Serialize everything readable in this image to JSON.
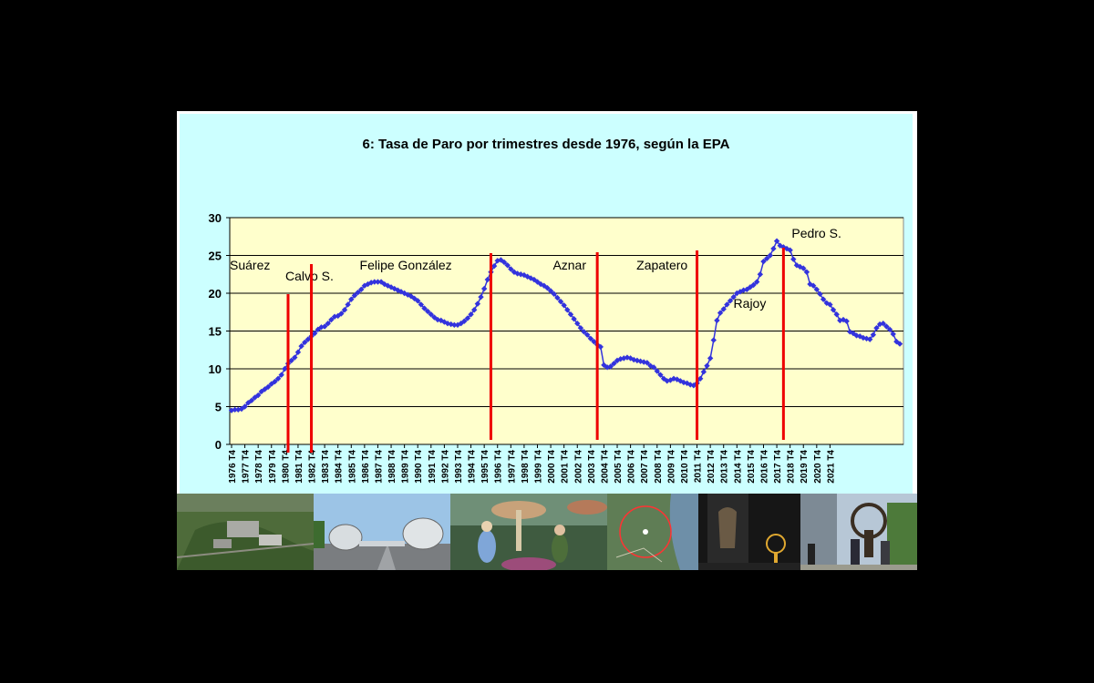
{
  "chart_data": {
    "type": "line",
    "title": "6: Tasa de Paro por trimestres  desde 1976, según la EPA",
    "xlabel": "",
    "ylabel": "",
    "ylim": [
      0,
      30
    ],
    "yticks": [
      0,
      5,
      10,
      15,
      20,
      25,
      30
    ],
    "x_tick_labels": [
      "1976 T4",
      "1977 T4",
      "1978 T4",
      "1979 T4",
      "1980 T4",
      "1981 T4",
      "1982 T4",
      "1983 T4",
      "1984 T4",
      "1985 T4",
      "1986 T4",
      "1987 T4",
      "1988 T4",
      "1989 T4",
      "1990 T4",
      "1991 T4",
      "1992 T4",
      "1993 T4",
      "1994 T4",
      "1995 T4",
      "1996 T4",
      "1997 T4",
      "1998 T4",
      "1999 T4",
      "2000 T4",
      "2001 T4",
      "2002 T4",
      "2003 T4",
      "2004 T4",
      "2005 T4",
      "2006 T4",
      "2007 T4",
      "2008 T4",
      "2009 T4",
      "2010 T4",
      "2011 T4",
      "2012 T4",
      "2013 T4",
      "2014 T4",
      "2015 T4",
      "2016 T4",
      "2017 T4",
      "2018 T4",
      "2019 T4",
      "2020 T4",
      "2021 T4"
    ],
    "grid": true,
    "legend": "none",
    "colors": {
      "plot_bg": "#ffffcc",
      "chart_bg": "#ccffff",
      "series": "#3333dd",
      "marker_line": "#ee0000",
      "grid": "#000000"
    },
    "series": [
      {
        "name": "",
        "x_start": "1976 T4",
        "x_step": "quarter",
        "values": [
          4.5,
          4.6,
          4.6,
          4.7,
          5.0,
          5.5,
          5.8,
          6.2,
          6.5,
          7.0,
          7.3,
          7.6,
          8.0,
          8.3,
          8.7,
          9.2,
          10.0,
          10.7,
          11.1,
          11.5,
          12.2,
          13.0,
          13.5,
          13.9,
          14.3,
          14.7,
          15.2,
          15.5,
          15.6,
          16.0,
          16.5,
          16.9,
          17.0,
          17.3,
          17.8,
          18.5,
          19.2,
          19.7,
          20.1,
          20.5,
          21.0,
          21.2,
          21.4,
          21.5,
          21.5,
          21.5,
          21.2,
          21.0,
          20.8,
          20.6,
          20.4,
          20.2,
          20.0,
          19.8,
          19.6,
          19.3,
          19.0,
          18.5,
          18.0,
          17.6,
          17.2,
          16.8,
          16.5,
          16.4,
          16.2,
          16.0,
          15.9,
          15.8,
          15.8,
          16.0,
          16.3,
          16.7,
          17.2,
          17.8,
          18.6,
          19.5,
          20.6,
          21.8,
          22.8,
          23.6,
          24.3,
          24.4,
          24.1,
          23.7,
          23.2,
          22.8,
          22.6,
          22.5,
          22.4,
          22.2,
          22.0,
          21.8,
          21.5,
          21.2,
          21.0,
          20.7,
          20.3,
          19.9,
          19.4,
          18.9,
          18.4,
          17.8,
          17.2,
          16.6,
          16.0,
          15.4,
          14.9,
          14.5,
          14.0,
          13.6,
          13.2,
          12.9,
          10.5,
          10.2,
          10.3,
          10.7,
          11.1,
          11.3,
          11.4,
          11.5,
          11.4,
          11.2,
          11.1,
          11.0,
          10.9,
          10.8,
          10.4,
          10.2,
          9.7,
          9.2,
          8.7,
          8.4,
          8.5,
          8.7,
          8.6,
          8.4,
          8.2,
          8.1,
          7.9,
          7.8,
          8.1,
          8.7,
          9.6,
          10.4,
          11.4,
          13.8,
          16.4,
          17.4,
          17.9,
          18.5,
          19.0,
          19.5,
          20.0,
          20.2,
          20.4,
          20.5,
          20.8,
          21.1,
          21.5,
          22.5,
          24.2,
          24.6,
          25.0,
          25.9,
          26.9,
          26.3,
          26.1,
          25.9,
          25.7,
          24.5,
          23.7,
          23.5,
          23.3,
          22.8,
          21.2,
          21.0,
          20.5,
          19.9,
          19.2,
          18.7,
          18.5,
          17.8,
          17.2,
          16.4,
          16.5,
          16.3,
          14.9,
          14.7,
          14.4,
          14.3,
          14.1,
          14.0,
          13.9,
          14.5,
          15.4,
          15.9,
          16.0,
          15.6,
          15.2,
          14.6,
          13.6,
          13.3
        ]
      }
    ],
    "vertical_markers": [
      {
        "label": "Suárez",
        "x": "1976 T4"
      },
      {
        "label": "Calvo S.",
        "x": "1981 T1"
      },
      {
        "label": "Felipe González",
        "x": "1982 T4"
      },
      {
        "label": "Aznar",
        "x": "1996 T2"
      },
      {
        "label": "Zapatero",
        "x": "2004 T2"
      },
      {
        "label": "Rajoy",
        "x": "2011 T4"
      },
      {
        "label": "Pedro S.",
        "x": "2018 T2"
      }
    ]
  },
  "images": {
    "photo_1": "aerial view of campus",
    "photo_2": "futuristic buildings on road",
    "photo_3": "fantasy movie scene with giant mushrooms",
    "photo_4": "satellite map with circle",
    "photo_5": "statue at night",
    "photo_6": "statue with people outdoors"
  }
}
